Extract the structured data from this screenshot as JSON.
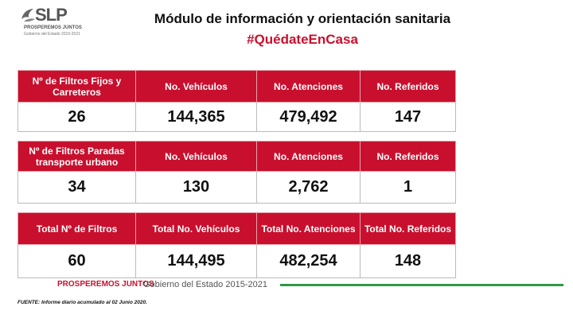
{
  "logo": {
    "text": "SLP",
    "line1": "PROSPEREMOS JUNTOS",
    "line2": "Gobierno del Estado 2015-2021"
  },
  "header": {
    "title": "Módulo de información y orientación sanitaria",
    "hashtag": "#QuédateEnCasa"
  },
  "tables": [
    {
      "headers": [
        "Nº de Filtros Fijos y Carreteros",
        "No. Vehículos",
        "No. Atenciones",
        "No. Referidos"
      ],
      "values": [
        "26",
        "144,365",
        "479,492",
        "147"
      ]
    },
    {
      "headers": [
        "Nº de Filtros Paradas transporte urbano",
        "No. Vehículos",
        "No. Atenciones",
        "No. Referidos"
      ],
      "values": [
        "34",
        "130",
        "2,762",
        "1"
      ]
    },
    {
      "headers": [
        "Total Nº de Filtros",
        "Total No. Vehículos",
        "Total No. Atenciones",
        "Total No. Referidos"
      ],
      "values": [
        "60",
        "144,495",
        "482,254",
        "148"
      ]
    }
  ],
  "footer": {
    "slogan": "PROSPEREMOS JUNTOS",
    "government": "Gobierno del Estado 2015-2021",
    "source": "FUENTE: Informe diario acumulado al 02 Junio 2020."
  }
}
